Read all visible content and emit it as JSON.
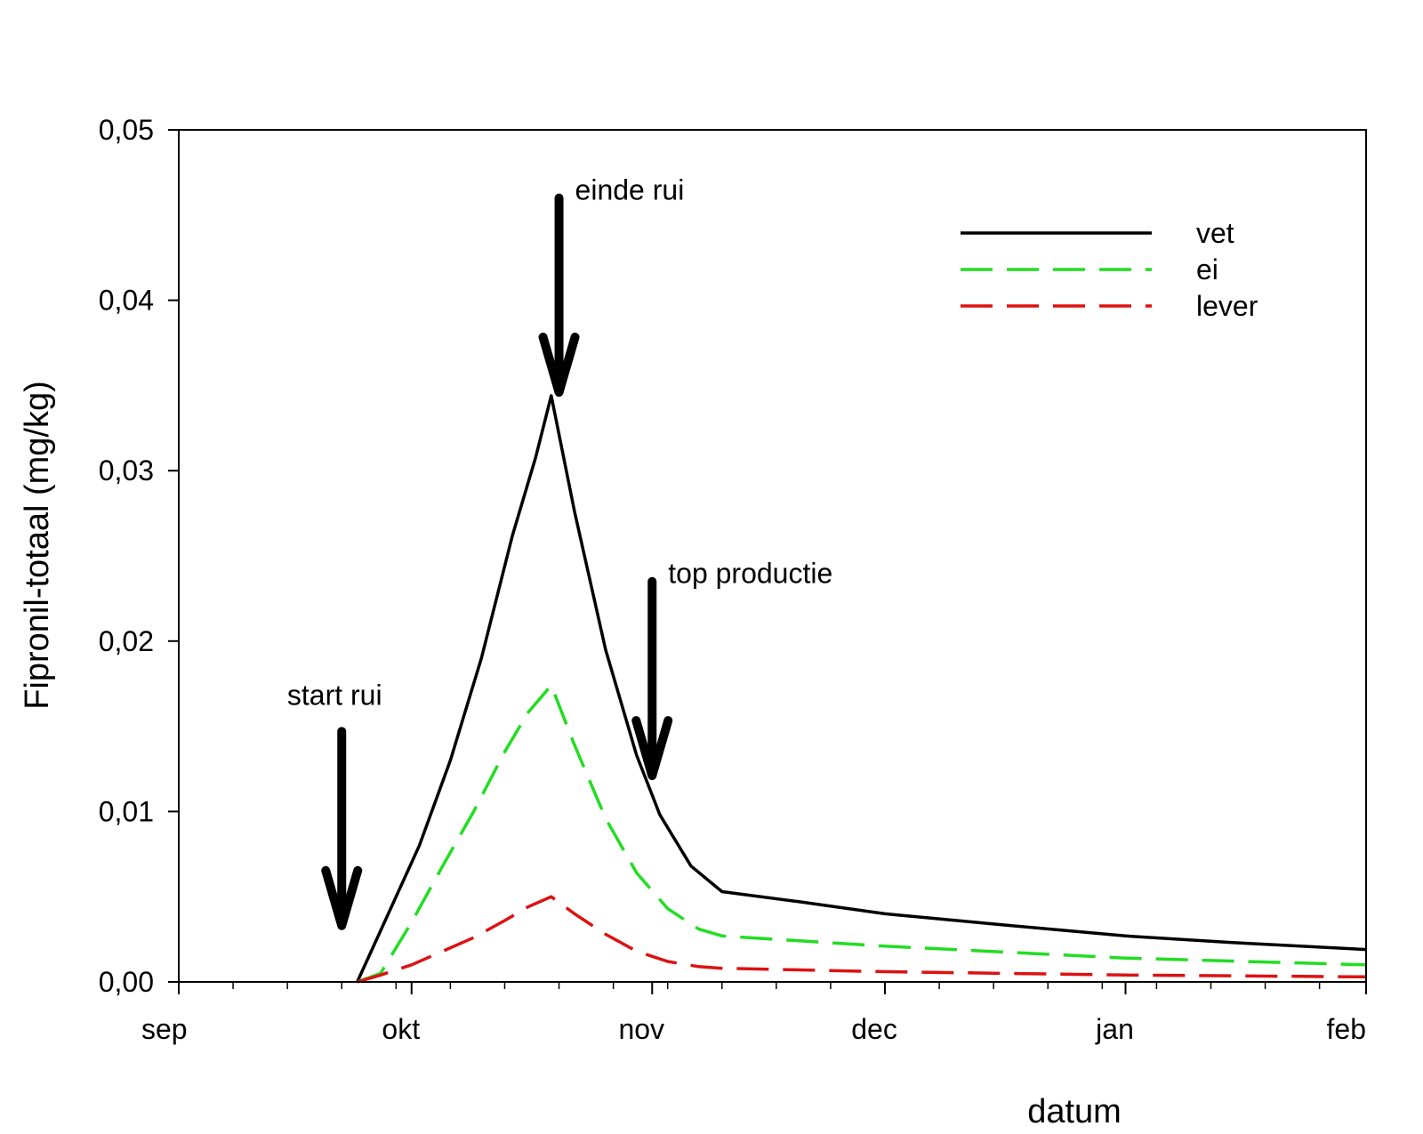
{
  "chart_data": {
    "type": "line",
    "title": "",
    "xlabel": "datum",
    "ylabel": "Fipronil-totaal (mg/kg)",
    "x_ticks": [
      "sep",
      "okt",
      "nov",
      "dec",
      "jan",
      "feb"
    ],
    "y_ticks": [
      "0,00",
      "0,01",
      "0,02",
      "0,03",
      "0,04",
      "0,05"
    ],
    "xlim": [
      "sep",
      "feb"
    ],
    "ylim": [
      0,
      0.05
    ],
    "grid": false,
    "legend_position": "top-right",
    "series": [
      {
        "name": "vet",
        "color": "#000000",
        "style": "solid",
        "points": [
          [
            "2007-09-24",
            0
          ],
          [
            "2007-09-28",
            0.004
          ],
          [
            "2007-10-02",
            0.008
          ],
          [
            "2007-10-06",
            0.013
          ],
          [
            "2007-10-10",
            0.019
          ],
          [
            "2007-10-14",
            0.0262
          ],
          [
            "2007-10-17",
            0.0308
          ],
          [
            "2007-10-19",
            0.0344
          ],
          [
            "2007-10-22",
            0.0276
          ],
          [
            "2007-10-26",
            0.0195
          ],
          [
            "2007-10-30",
            0.0133
          ],
          [
            "2007-11-02",
            0.0098
          ],
          [
            "2007-11-06",
            0.0068
          ],
          [
            "2007-11-10",
            0.0053
          ],
          [
            "2007-11-20",
            0.0047
          ],
          [
            "2007-12-01",
            0.004
          ],
          [
            "2007-12-15",
            0.0034
          ],
          [
            "2008-01-01",
            0.0027
          ],
          [
            "2008-01-15",
            0.0023
          ],
          [
            "2008-02-01",
            0.0019
          ]
        ]
      },
      {
        "name": "ei",
        "color": "#22dd22",
        "style": "dashed",
        "points": [
          [
            "2007-09-24",
            0
          ],
          [
            "2007-09-27",
            0.0005
          ],
          [
            "2007-10-01",
            0.0035
          ],
          [
            "2007-10-05",
            0.0068
          ],
          [
            "2007-10-09",
            0.01
          ],
          [
            "2007-10-13",
            0.0135
          ],
          [
            "2007-10-16",
            0.0158
          ],
          [
            "2007-10-19",
            0.0174
          ],
          [
            "2007-10-22",
            0.0139
          ],
          [
            "2007-10-26",
            0.0096
          ],
          [
            "2007-10-30",
            0.0064
          ],
          [
            "2007-11-03",
            0.0043
          ],
          [
            "2007-11-07",
            0.0031
          ],
          [
            "2007-11-10",
            0.0027
          ],
          [
            "2007-12-01",
            0.0021
          ],
          [
            "2008-01-01",
            0.0014
          ],
          [
            "2008-02-01",
            0.001
          ]
        ]
      },
      {
        "name": "lever",
        "color": "#dd1111",
        "style": "dashed",
        "points": [
          [
            "2007-09-24",
            0
          ],
          [
            "2007-09-27",
            0.0004
          ],
          [
            "2007-10-01",
            0.001
          ],
          [
            "2007-10-05",
            0.0018
          ],
          [
            "2007-10-09",
            0.0026
          ],
          [
            "2007-10-13",
            0.0036
          ],
          [
            "2007-10-16",
            0.0044
          ],
          [
            "2007-10-19",
            0.005
          ],
          [
            "2007-10-22",
            0.004
          ],
          [
            "2007-10-26",
            0.0028
          ],
          [
            "2007-10-30",
            0.0018
          ],
          [
            "2007-11-03",
            0.0012
          ],
          [
            "2007-11-07",
            0.0009
          ],
          [
            "2007-11-10",
            0.0008
          ],
          [
            "2007-12-01",
            0.0006
          ],
          [
            "2008-01-01",
            0.0004
          ],
          [
            "2008-02-01",
            0.0003
          ]
        ]
      }
    ],
    "annotations": [
      {
        "label": "start rui",
        "date": "2007-09-22",
        "arrow_from": 0.0147,
        "arrow_to": 0.0033
      },
      {
        "label": "einde rui",
        "date": "2007-10-20",
        "arrow_from": 0.046,
        "arrow_to": 0.0346
      },
      {
        "label": "top productie",
        "date": "2007-11-01",
        "arrow_from": 0.0235,
        "arrow_to": 0.0121
      }
    ]
  }
}
